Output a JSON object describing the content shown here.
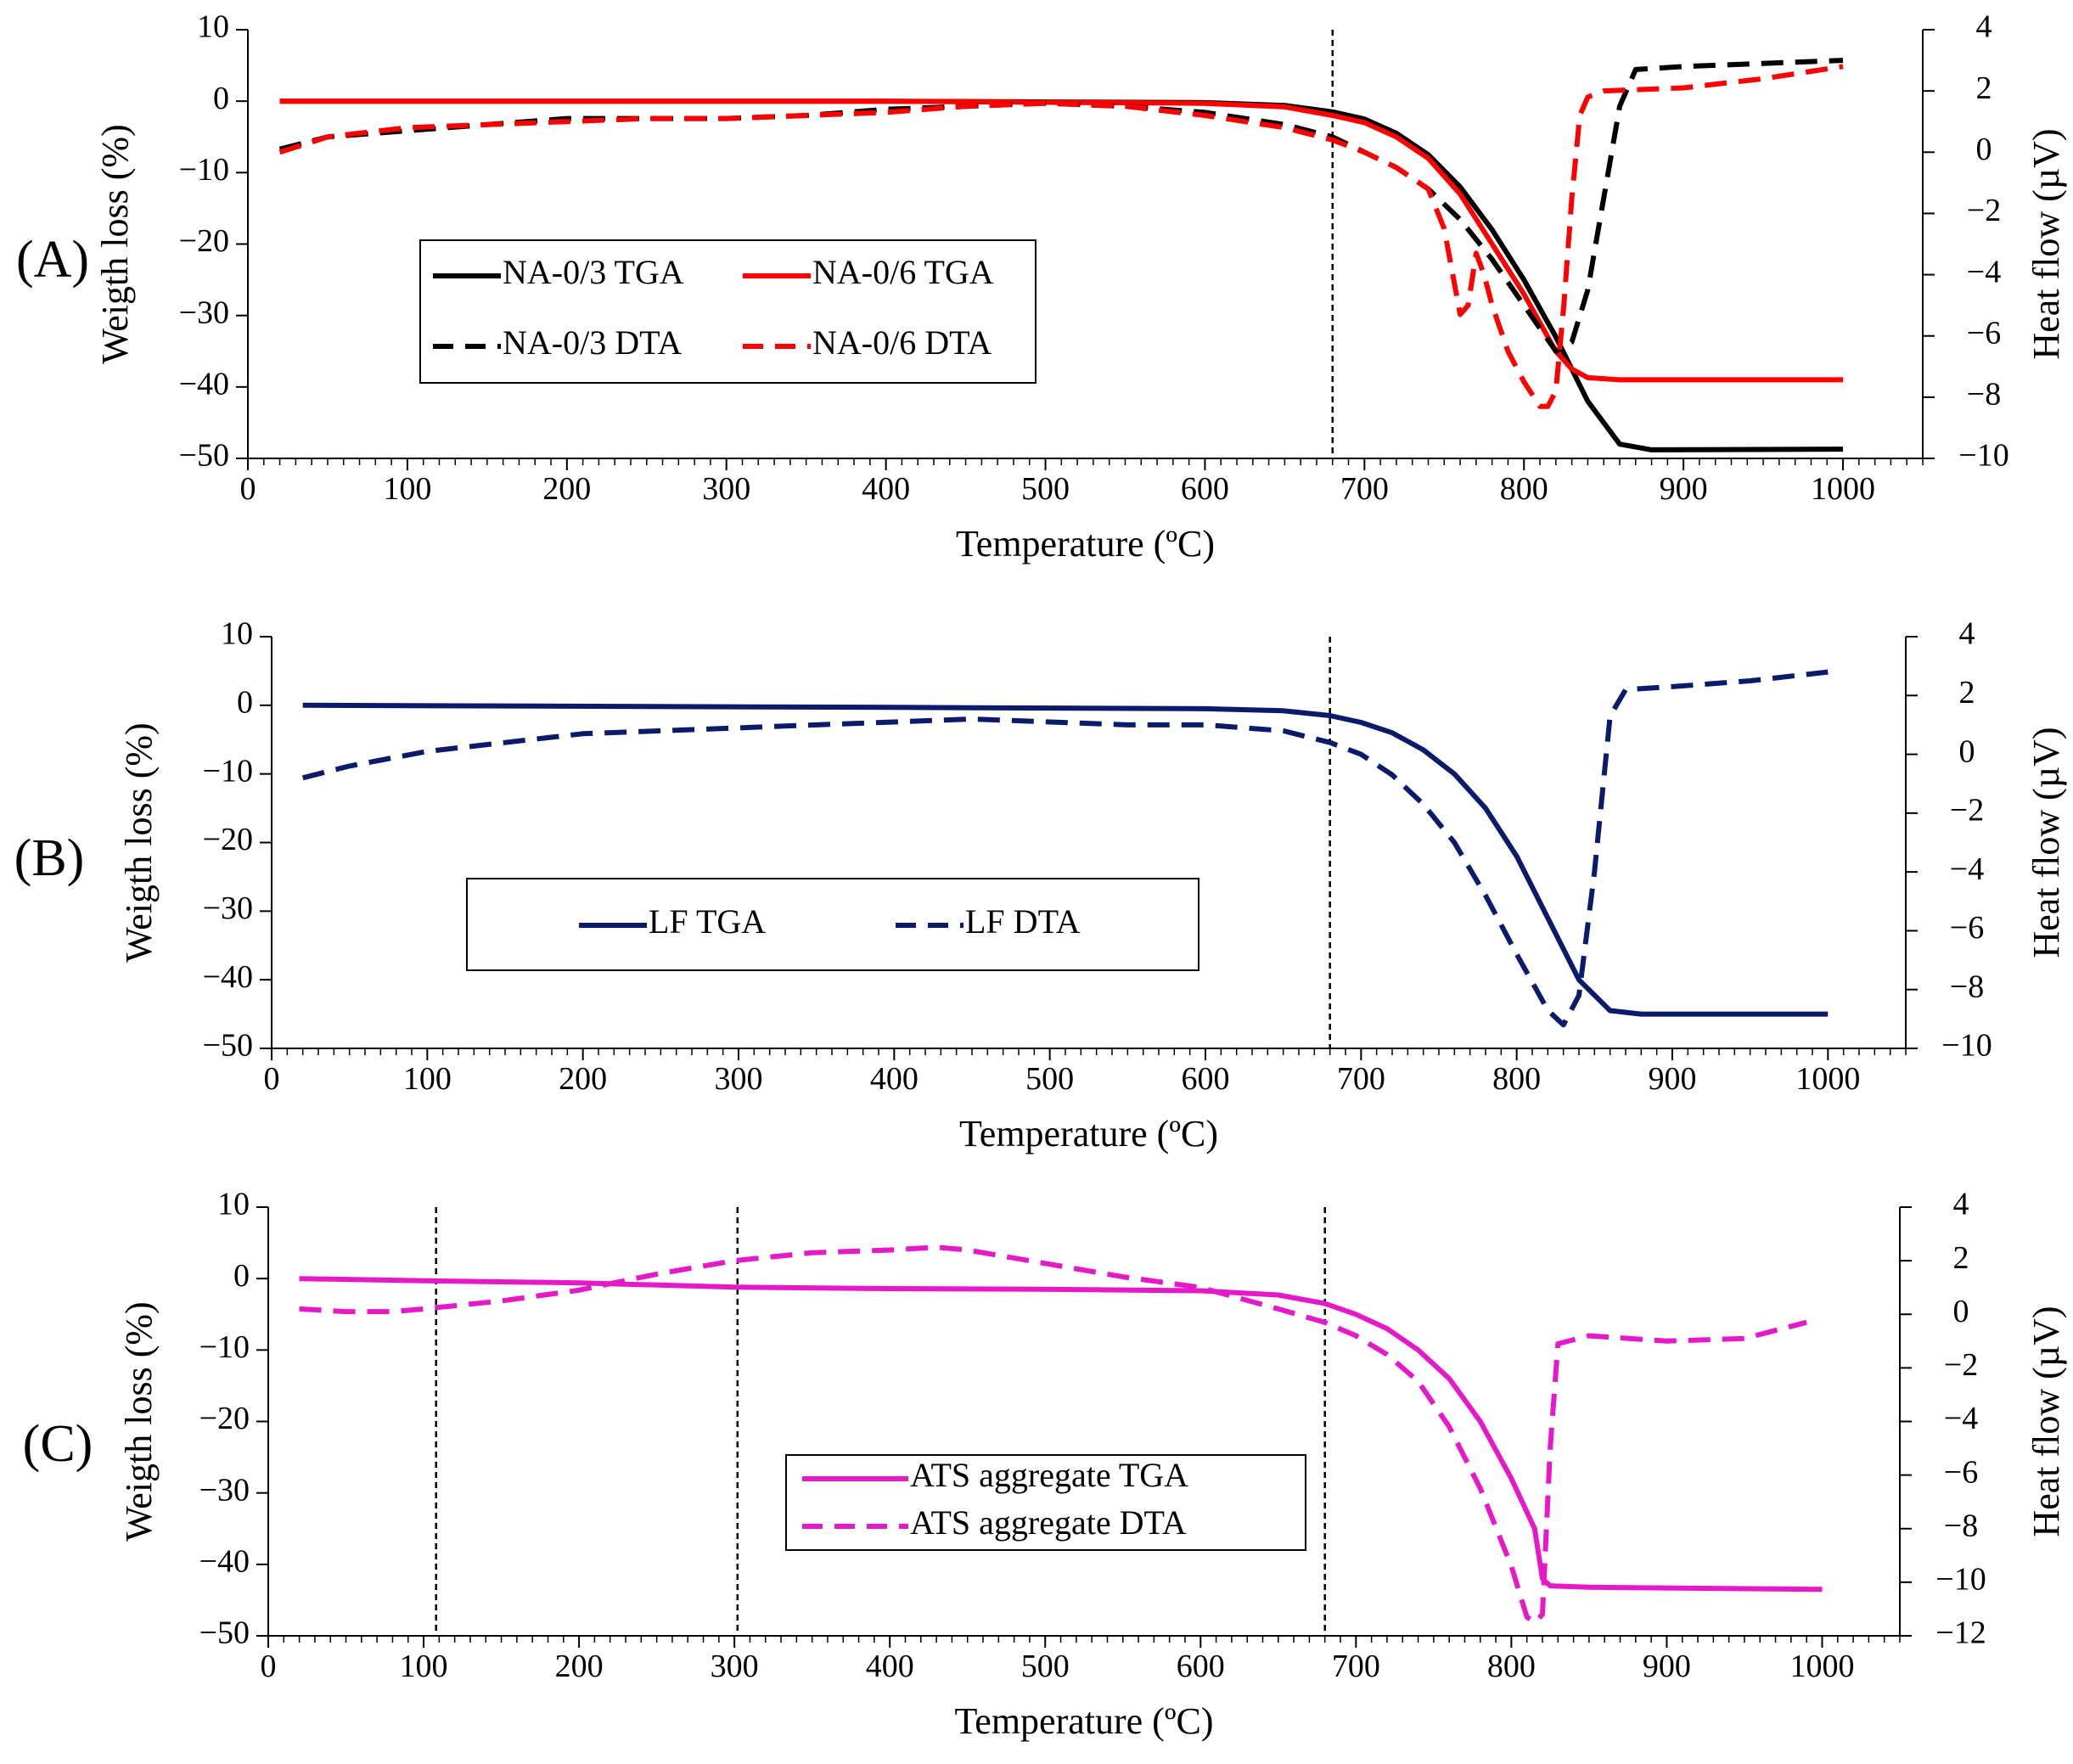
{
  "chart_data": [
    {
      "panel_label": "(A)",
      "type": "line",
      "xlabel": "Temperature (ºC)",
      "ylabel": "Weigth loss (%)",
      "y2label": "Heat flow (µV)",
      "xlim": [
        0,
        1050
      ],
      "ylim": [
        -50,
        10
      ],
      "y2lim": [
        -10,
        4
      ],
      "xticks": [
        0,
        100,
        200,
        300,
        400,
        500,
        600,
        700,
        800,
        900,
        1000
      ],
      "yticks": [
        -50,
        -40,
        -30,
        -20,
        -10,
        0,
        10
      ],
      "y2ticks": [
        -10,
        -8,
        -6,
        -4,
        -2,
        0,
        2,
        4
      ],
      "vlines": [
        680
      ],
      "legend": {
        "rows": [
          [
            "NA-0/3 TGA",
            "NA-0/6 TGA"
          ],
          [
            "NA-0/3 DTA",
            "NA-0/6 DTA"
          ]
        ]
      },
      "series": [
        {
          "name": "NA-0/3 TGA",
          "axis": "left",
          "color": "#000000",
          "style": "solid",
          "x": [
            20,
            400,
            600,
            650,
            680,
            700,
            720,
            740,
            760,
            780,
            800,
            820,
            840,
            860,
            880,
            1000
          ],
          "values": [
            0,
            0,
            -0.2,
            -0.6,
            -1.5,
            -2.5,
            -4.5,
            -7.5,
            -12,
            -18,
            -25,
            -33,
            -42,
            -48,
            -48.8,
            -48.7
          ]
        },
        {
          "name": "NA-0/6 TGA",
          "axis": "left",
          "color": "#ff0000",
          "style": "solid",
          "x": [
            20,
            400,
            600,
            650,
            680,
            700,
            720,
            740,
            760,
            780,
            800,
            820,
            830,
            840,
            860,
            1000
          ],
          "values": [
            0,
            0,
            -0.3,
            -0.8,
            -2,
            -3,
            -5,
            -8,
            -13,
            -20,
            -27,
            -35,
            -37.5,
            -38.7,
            -39,
            -39
          ]
        },
        {
          "name": "NA-0/3 DTA",
          "axis": "right",
          "color": "#000000",
          "style": "dashed",
          "x": [
            20,
            50,
            100,
            150,
            200,
            250,
            300,
            350,
            400,
            450,
            500,
            550,
            600,
            650,
            680,
            700,
            720,
            740,
            760,
            780,
            800,
            820,
            830,
            840,
            850,
            860,
            870,
            900,
            950,
            1000
          ],
          "values": [
            0.1,
            0.5,
            0.7,
            0.9,
            1.1,
            1.1,
            1.1,
            1.2,
            1.4,
            1.5,
            1.6,
            1.5,
            1.3,
            0.9,
            0.5,
            0,
            -0.5,
            -1.2,
            -2.2,
            -3.5,
            -5,
            -6.5,
            -6.2,
            -4.5,
            -1.5,
            1.5,
            2.7,
            2.8,
            2.9,
            3.0
          ]
        },
        {
          "name": "NA-0/6 DTA",
          "axis": "right",
          "color": "#ff0000",
          "style": "dashed",
          "x": [
            20,
            50,
            100,
            150,
            200,
            250,
            300,
            350,
            400,
            450,
            500,
            550,
            600,
            650,
            680,
            700,
            720,
            740,
            750,
            760,
            765,
            770,
            775,
            780,
            790,
            800,
            810,
            815,
            820,
            825,
            830,
            835,
            840,
            850,
            900,
            950,
            1000
          ],
          "values": [
            0,
            0.5,
            0.8,
            0.9,
            1.0,
            1.1,
            1.1,
            1.2,
            1.3,
            1.5,
            1.6,
            1.5,
            1.2,
            0.8,
            0.4,
            0,
            -0.5,
            -1.2,
            -2.5,
            -5.3,
            -5.0,
            -3.3,
            -4,
            -5,
            -6.5,
            -7.5,
            -8.3,
            -8.3,
            -7.8,
            -5,
            -1.5,
            1.2,
            1.8,
            2.0,
            2.1,
            2.4,
            2.8
          ]
        }
      ]
    },
    {
      "panel_label": "(B)",
      "type": "line",
      "xlabel": "Temperature (ºC)",
      "ylabel": "Weigth loss (%)",
      "y2label": "Heat flow (µV)",
      "xlim": [
        0,
        1050
      ],
      "ylim": [
        -50,
        10
      ],
      "y2lim": [
        -10,
        4
      ],
      "xticks": [
        0,
        100,
        200,
        300,
        400,
        500,
        600,
        700,
        800,
        900,
        1000
      ],
      "yticks": [
        -50,
        -40,
        -30,
        -20,
        -10,
        0,
        10
      ],
      "y2ticks": [
        -10,
        -8,
        -6,
        -4,
        -2,
        0,
        2,
        4
      ],
      "vlines": [
        680
      ],
      "legend": {
        "rows": [
          [
            "LF TGA",
            "LF DTA"
          ]
        ]
      },
      "series": [
        {
          "name": "LF TGA",
          "axis": "left",
          "color": "#0b1a6b",
          "style": "solid",
          "x": [
            20,
            400,
            600,
            650,
            680,
            700,
            720,
            740,
            760,
            780,
            800,
            820,
            840,
            860,
            880,
            1000
          ],
          "values": [
            0,
            -0.3,
            -0.5,
            -0.8,
            -1.5,
            -2.5,
            -4,
            -6.5,
            -10,
            -15,
            -22,
            -31,
            -40,
            -44.5,
            -45,
            -45
          ]
        },
        {
          "name": "LF DTA",
          "axis": "right",
          "color": "#0b1a6b",
          "style": "dashed",
          "x": [
            20,
            50,
            100,
            150,
            200,
            250,
            300,
            350,
            400,
            450,
            500,
            550,
            600,
            650,
            680,
            700,
            720,
            740,
            760,
            780,
            800,
            820,
            830,
            840,
            850,
            860,
            870,
            900,
            950,
            1000
          ],
          "values": [
            -0.8,
            -0.4,
            0.1,
            0.4,
            0.7,
            0.8,
            0.9,
            1.0,
            1.1,
            1.2,
            1.1,
            1.0,
            1.0,
            0.8,
            0.4,
            0,
            -0.7,
            -1.7,
            -3,
            -4.8,
            -6.8,
            -8.7,
            -9.2,
            -8.2,
            -4,
            1.3,
            2.2,
            2.3,
            2.5,
            2.8
          ]
        }
      ]
    },
    {
      "panel_label": "(C)",
      "type": "line",
      "xlabel": "Temperature (ºC)",
      "ylabel": "Weigth loss (%)",
      "y2label": "Heat flow (µV)",
      "xlim": [
        0,
        1050
      ],
      "ylim": [
        -50,
        10
      ],
      "y2lim": [
        -12,
        4
      ],
      "xticks": [
        0,
        100,
        200,
        300,
        400,
        500,
        600,
        700,
        800,
        900,
        1000
      ],
      "yticks": [
        -50,
        -40,
        -30,
        -20,
        -10,
        0,
        10
      ],
      "y2ticks": [
        -12,
        -10,
        -8,
        -6,
        -4,
        -2,
        0,
        2,
        4
      ],
      "vlines": [
        108,
        302,
        680
      ],
      "legend": {
        "rows": [
          [
            "ATS aggregate TGA"
          ],
          [
            "ATS aggregate DTA"
          ]
        ]
      },
      "series": [
        {
          "name": "ATS aggregate TGA",
          "axis": "left",
          "color": "#e619c8",
          "style": "solid",
          "x": [
            20,
            100,
            200,
            300,
            400,
            500,
            600,
            650,
            680,
            700,
            720,
            740,
            760,
            780,
            800,
            815,
            820,
            825,
            850,
            1000
          ],
          "values": [
            0,
            -0.3,
            -0.6,
            -1.2,
            -1.4,
            -1.5,
            -1.7,
            -2.3,
            -3.5,
            -5,
            -7,
            -10,
            -14,
            -20,
            -28,
            -35,
            -42,
            -43,
            -43.2,
            -43.5
          ]
        },
        {
          "name": "ATS aggregate DTA",
          "axis": "right",
          "color": "#e619c8",
          "style": "dashed",
          "x": [
            20,
            50,
            80,
            100,
            150,
            200,
            250,
            300,
            350,
            400,
            430,
            450,
            500,
            550,
            600,
            650,
            680,
            700,
            720,
            740,
            760,
            780,
            800,
            810,
            815,
            820,
            825,
            830,
            850,
            900,
            950,
            990
          ],
          "values": [
            0.2,
            0.1,
            0.1,
            0.2,
            0.5,
            0.9,
            1.5,
            2.0,
            2.3,
            2.4,
            2.5,
            2.4,
            1.9,
            1.4,
            1.0,
            0.2,
            -0.3,
            -0.8,
            -1.5,
            -2.5,
            -4.2,
            -6.5,
            -9.4,
            -11.3,
            -11.5,
            -11.2,
            -5,
            -1.1,
            -0.8,
            -1.0,
            -0.9,
            -0.3
          ]
        }
      ]
    }
  ]
}
